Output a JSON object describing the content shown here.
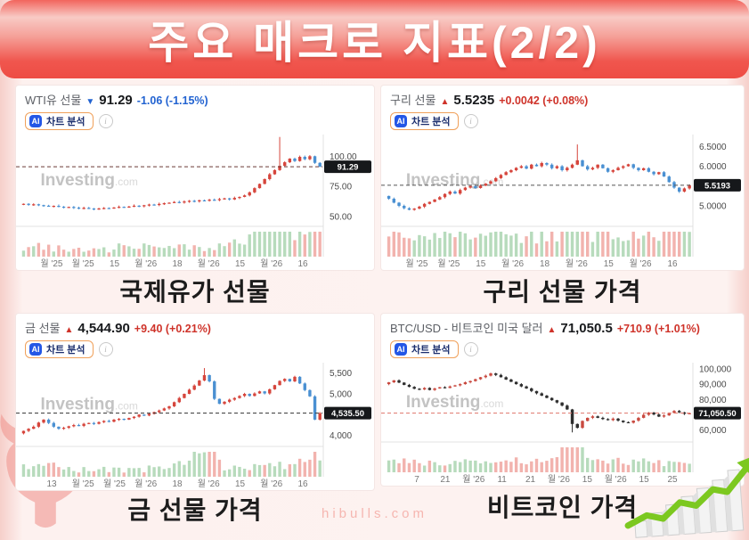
{
  "page": {
    "title": "주요 매크로 지표(2/2)",
    "footer": "hibulls.com"
  },
  "common": {
    "ai_badge": "AI",
    "ai_label": "차트 분석",
    "info_glyph": "i",
    "watermark": "Investing",
    "watermark_suffix": ".com"
  },
  "colors": {
    "candle_up": "#d6453c",
    "candle_down": "#4a90d2",
    "vol_up": "#b7dbbc",
    "vol_down": "#f2b3ae",
    "change_up": "#cf332a",
    "change_down": "#2263d1",
    "header_red": "#ee4c44",
    "tag_bg": "#16181b"
  },
  "charts": [
    {
      "name": "WTI유 선물",
      "direction": "down",
      "arrow": "▼",
      "price": "91.29",
      "change": "-1.06 (-1.15%)",
      "caption": "국제유가 선물"
    },
    {
      "name": "구리 선물",
      "direction": "up",
      "arrow": "▲",
      "price": "5.5235",
      "change": "+0.0042 (+0.08%)",
      "caption": "구리 선물 가격"
    },
    {
      "name": "금 선물",
      "direction": "up",
      "arrow": "▲",
      "price": "4,544.90",
      "change": "+9.40 (+0.21%)",
      "caption": "금 선물 가격"
    },
    {
      "name": "BTC/USD - 비트코인 미국 달러",
      "direction": "up",
      "arrow": "▲",
      "price": "71,050.5",
      "change": "+710.9 (+1.01%)",
      "caption": "비트코인 가격"
    }
  ],
  "chart_data": [
    {
      "type": "candlestick",
      "title": "WTI Crude Oil Futures",
      "ylim": [
        44,
        118
      ],
      "yticks": [
        {
          "v": 100,
          "label": "100.00"
        },
        {
          "v": 75,
          "label": "75.00"
        },
        {
          "v": 50,
          "label": "50.00"
        }
      ],
      "price_line": {
        "v": 91.29,
        "label": "91.29",
        "color": "#6b3a36"
      },
      "x_labels": [
        "월 '25",
        "월 '25",
        "15",
        "월 '26",
        "18",
        "월 '26",
        "15",
        "월 '26",
        "16"
      ],
      "spike": {
        "i": 52,
        "high": 116
      },
      "closes": [
        60.2,
        60.5,
        59.8,
        60.1,
        59.4,
        58.9,
        58.5,
        58.8,
        58.1,
        57.6,
        57.9,
        57.3,
        56.9,
        57.1,
        56.6,
        56.2,
        56.6,
        57.0,
        56.8,
        57.4,
        58.0,
        57.6,
        58.2,
        58.9,
        58.4,
        59.3,
        59.9,
        59.5,
        60.4,
        61.0,
        61.4,
        62.0,
        61.5,
        62.4,
        63.0,
        62.5,
        63.4,
        63.0,
        63.9,
        63.5,
        64.4,
        65.0,
        64.1,
        65.4,
        66.2,
        67.5,
        70.0,
        73.5,
        77.0,
        81.0,
        85.0,
        88.5,
        92.0,
        95.0,
        98.0,
        96.0,
        99.5,
        97.5,
        100.0,
        94.5,
        91.29
      ]
    },
    {
      "type": "candlestick",
      "title": "Copper Futures",
      "ylim": [
        4.55,
        6.8
      ],
      "yticks": [
        {
          "v": 6.5,
          "label": "6.5000"
        },
        {
          "v": 6.0,
          "label": "6.0000"
        },
        {
          "v": 5.0,
          "label": "5.0000"
        }
      ],
      "price_line": {
        "v": 5.5193,
        "label": "5.5193",
        "color": "#555555"
      },
      "x_labels": [
        "월 '25",
        "월 '25",
        "15",
        "월 '26",
        "18",
        "월 '26",
        "15",
        "월 '26",
        "16"
      ],
      "spike": {
        "i": 38,
        "high": 6.55
      },
      "closes": [
        5.25,
        5.18,
        5.08,
        5.0,
        4.94,
        4.9,
        4.93,
        4.98,
        5.05,
        5.1,
        5.16,
        5.22,
        5.3,
        5.36,
        5.31,
        5.4,
        5.46,
        5.5,
        5.45,
        5.51,
        5.56,
        5.62,
        5.7,
        5.78,
        5.85,
        5.9,
        5.96,
        6.0,
        5.94,
        6.04,
        6.0,
        6.08,
        6.04,
        5.95,
        6.0,
        5.9,
        5.96,
        6.04,
        6.15,
        6.0,
        5.92,
        5.96,
        6.04,
        5.95,
        5.86,
        5.9,
        5.96,
        6.0,
        6.05,
        5.96,
        5.9,
        5.95,
        5.86,
        5.8,
        5.85,
        5.74,
        5.6,
        5.46,
        5.36,
        5.44,
        5.5193
      ]
    },
    {
      "type": "candlestick",
      "title": "Gold Futures",
      "ylim": [
        3800,
        5750
      ],
      "yticks": [
        {
          "v": 5500,
          "label": "5,500"
        },
        {
          "v": 5000,
          "label": "5,000"
        },
        {
          "v": 4000,
          "label": "4,000"
        }
      ],
      "price_line": {
        "v": 4535.5,
        "label": "4,535.50",
        "color": "#333333"
      },
      "x_labels": [
        "13",
        "월 '25",
        "월 '25",
        "월 '26",
        "18",
        "월 '26",
        "15",
        "월 '26",
        "16"
      ],
      "spike": {
        "i": 37,
        "high": 5620
      },
      "closes": [
        4050,
        4110,
        4160,
        4210,
        4310,
        4380,
        4300,
        4210,
        4160,
        4185,
        4220,
        4250,
        4230,
        4280,
        4300,
        4280,
        4320,
        4350,
        4330,
        4380,
        4400,
        4380,
        4420,
        4450,
        4500,
        4480,
        4520,
        4560,
        4600,
        4650,
        4700,
        4800,
        4900,
        5000,
        5100,
        5200,
        5320,
        5450,
        5300,
        4880,
        4760,
        4810,
        4860,
        4900,
        4950,
        5000,
        4950,
        5010,
        5060,
        5010,
        5110,
        5210,
        5310,
        5360,
        5300,
        5410,
        5250,
        5090,
        4940,
        4380,
        4535.5
      ]
    },
    {
      "type": "candlestick",
      "title": "BTC/USD",
      "ylim": [
        54000,
        104000
      ],
      "yticks": [
        {
          "v": 100000,
          "label": "100,000"
        },
        {
          "v": 90000,
          "label": "90,000"
        },
        {
          "v": 80000,
          "label": "80,000"
        },
        {
          "v": 60000,
          "label": "60,000"
        }
      ],
      "price_line": {
        "v": 71050.5,
        "label": "71,050.50",
        "color": "#e0756b"
      },
      "x_labels": [
        "7",
        "21",
        "월 '26",
        "11",
        "21",
        "월 '26",
        "15",
        "월 '26",
        "15",
        "25"
      ],
      "spike": {
        "i": 37,
        "low": 58500
      },
      "candle_colors": {
        "up": "#c94a40",
        "down": "#2e2e2e"
      },
      "closes": [
        90000,
        91200,
        92500,
        91000,
        89500,
        88200,
        87000,
        86500,
        87500,
        86200,
        87200,
        88000,
        87500,
        88500,
        89200,
        90000,
        91200,
        92000,
        93200,
        94500,
        95500,
        97000,
        96000,
        94500,
        93000,
        91500,
        90000,
        88500,
        87200,
        85500,
        84000,
        82500,
        81000,
        79500,
        78000,
        76000,
        73500,
        64000,
        61500,
        66000,
        68000,
        69000,
        68000,
        67200,
        66500,
        67500,
        66200,
        65200,
        64800,
        66200,
        68000,
        70000,
        71500,
        70200,
        68800,
        69600,
        71200,
        72500,
        71600,
        70600,
        71050.5
      ]
    }
  ]
}
